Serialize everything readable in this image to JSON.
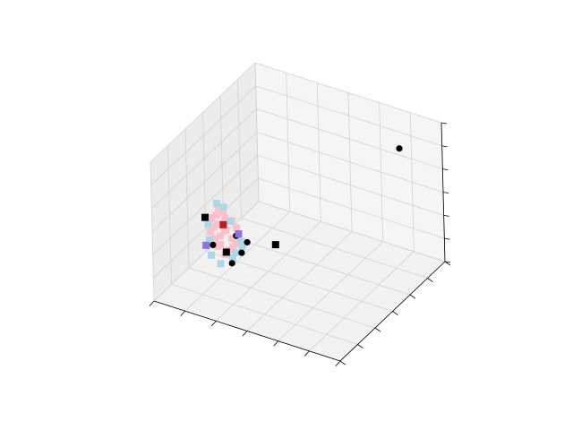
{
  "chart_data": {
    "type": "scatter",
    "projection": "3d",
    "title": "",
    "xlabel": "",
    "ylabel": "",
    "zlabel": "",
    "tick_labels_visible": false,
    "grid": true,
    "legend": "none",
    "xlim": [
      0,
      10
    ],
    "ylim": [
      0,
      10
    ],
    "zlim": [
      0,
      10
    ],
    "colors": {
      "pane": "#f2f2f2",
      "grid": "#d3d3d3",
      "cluster_main": "#ffc0cb",
      "cluster_secondary": "#add8e6",
      "outlier": "#000000",
      "highlight": "#b22222",
      "accent": "#9370db"
    },
    "series": [
      {
        "marker": "square",
        "color": "#ffc0cb",
        "points": [
          [
            3.0,
            1.5,
            6.6
          ],
          [
            3.2,
            1.3,
            6.4
          ],
          [
            2.8,
            1.4,
            6.9
          ],
          [
            3.4,
            1.6,
            6.1
          ],
          [
            2.9,
            1.1,
            6.0
          ],
          [
            3.3,
            1.2,
            5.7
          ],
          [
            2.6,
            1.3,
            5.5
          ],
          [
            3.1,
            1.0,
            5.3
          ],
          [
            3.5,
            1.4,
            5.0
          ],
          [
            2.7,
            1.2,
            4.8
          ],
          [
            3.0,
            0.9,
            4.6
          ],
          [
            3.6,
            1.3,
            4.5
          ],
          [
            2.8,
            1.5,
            4.2
          ],
          [
            3.3,
            1.1,
            4.0
          ],
          [
            3.1,
            1.4,
            3.7
          ],
          [
            2.5,
            1.2,
            6.2
          ],
          [
            3.7,
            1.5,
            5.8
          ],
          [
            3.8,
            1.2,
            4.9
          ],
          [
            2.4,
            1.3,
            5.1
          ],
          [
            3.2,
            1.6,
            3.9
          ],
          [
            2.9,
            1.0,
            6.7
          ],
          [
            3.4,
            0.9,
            5.9
          ]
        ]
      },
      {
        "marker": "square",
        "color": "#add8e6",
        "points": [
          [
            2.6,
            1.6,
            7.0
          ],
          [
            3.6,
            1.1,
            6.5
          ],
          [
            3.9,
            1.3,
            5.4
          ],
          [
            4.0,
            1.5,
            4.6
          ],
          [
            2.3,
            1.4,
            4.4
          ],
          [
            3.5,
            1.7,
            3.8
          ],
          [
            2.7,
            0.8,
            3.9
          ],
          [
            3.8,
            0.9,
            4.1
          ],
          [
            2.4,
            1.1,
            5.8
          ],
          [
            4.1,
            1.2,
            5.2
          ],
          [
            3.2,
            0.8,
            3.5
          ],
          [
            2.9,
            1.7,
            6.8
          ]
        ]
      },
      {
        "marker": "circle",
        "color": "#000000",
        "points": [
          [
            4.0,
            1.4,
            4.2
          ],
          [
            3.7,
            1.0,
            3.6
          ],
          [
            2.4,
            1.5,
            4.0
          ],
          [
            4.2,
            1.6,
            4.9
          ],
          [
            3.9,
            1.1,
            5.6
          ],
          [
            8.5,
            8.6,
            8.5
          ]
        ]
      },
      {
        "marker": "square",
        "color": "#000000",
        "points": [
          [
            5.5,
            2.0,
            5.0
          ],
          [
            2.3,
            1.0,
            6.3
          ],
          [
            3.0,
            1.7,
            3.6
          ]
        ]
      },
      {
        "marker": "square",
        "color": "#b22222",
        "points": [
          [
            3.1,
            1.3,
            5.9
          ]
        ]
      },
      {
        "marker": "square",
        "color": "#9370db",
        "points": [
          [
            2.2,
            1.2,
            4.1
          ],
          [
            3.8,
            1.5,
            5.4
          ]
        ]
      }
    ]
  }
}
